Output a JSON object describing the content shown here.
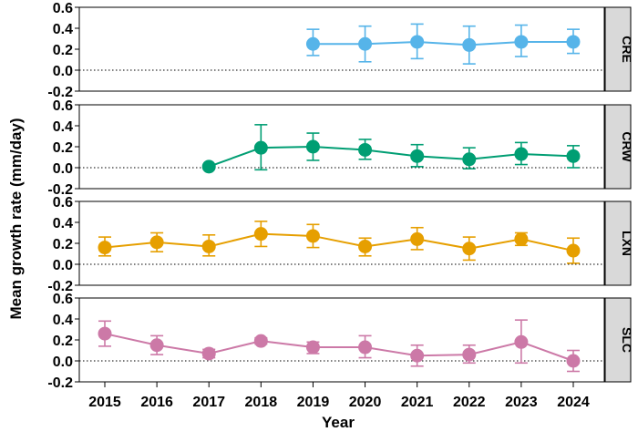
{
  "chart_data": {
    "type": "line",
    "xlabel": "Year",
    "ylabel": "Mean growth rate (mm/day)",
    "x": [
      2015,
      2016,
      2017,
      2018,
      2019,
      2020,
      2021,
      2022,
      2023,
      2024
    ],
    "ylim": [
      -0.2,
      0.6
    ],
    "yticks": [
      -0.2,
      0.0,
      0.2,
      0.4,
      0.6
    ],
    "reference_line": 0.0,
    "grid": false,
    "panels": [
      {
        "strip_label": "CRE",
        "color": "#56B4E9",
        "points": [
          {
            "x": 2019,
            "y": 0.25,
            "ymin": 0.14,
            "ymax": 0.39
          },
          {
            "x": 2020,
            "y": 0.25,
            "ymin": 0.08,
            "ymax": 0.42
          },
          {
            "x": 2021,
            "y": 0.27,
            "ymin": 0.11,
            "ymax": 0.44
          },
          {
            "x": 2022,
            "y": 0.24,
            "ymin": 0.06,
            "ymax": 0.42
          },
          {
            "x": 2023,
            "y": 0.27,
            "ymin": 0.13,
            "ymax": 0.43
          },
          {
            "x": 2024,
            "y": 0.27,
            "ymin": 0.16,
            "ymax": 0.39
          }
        ]
      },
      {
        "strip_label": "CRW",
        "color": "#009E73",
        "points": [
          {
            "x": 2017,
            "y": 0.01,
            "ymin": 0.01,
            "ymax": 0.01
          },
          {
            "x": 2018,
            "y": 0.19,
            "ymin": -0.02,
            "ymax": 0.41
          },
          {
            "x": 2019,
            "y": 0.2,
            "ymin": 0.07,
            "ymax": 0.33
          },
          {
            "x": 2020,
            "y": 0.17,
            "ymin": 0.08,
            "ymax": 0.27
          },
          {
            "x": 2021,
            "y": 0.11,
            "ymin": 0.01,
            "ymax": 0.22
          },
          {
            "x": 2022,
            "y": 0.08,
            "ymin": -0.01,
            "ymax": 0.19
          },
          {
            "x": 2023,
            "y": 0.13,
            "ymin": 0.03,
            "ymax": 0.24
          },
          {
            "x": 2024,
            "y": 0.11,
            "ymin": 0.0,
            "ymax": 0.21
          }
        ]
      },
      {
        "strip_label": "LXN",
        "color": "#E69F00",
        "points": [
          {
            "x": 2015,
            "y": 0.16,
            "ymin": 0.08,
            "ymax": 0.26
          },
          {
            "x": 2016,
            "y": 0.21,
            "ymin": 0.12,
            "ymax": 0.3
          },
          {
            "x": 2017,
            "y": 0.17,
            "ymin": 0.08,
            "ymax": 0.28
          },
          {
            "x": 2018,
            "y": 0.29,
            "ymin": 0.17,
            "ymax": 0.41
          },
          {
            "x": 2019,
            "y": 0.27,
            "ymin": 0.16,
            "ymax": 0.38
          },
          {
            "x": 2020,
            "y": 0.17,
            "ymin": 0.08,
            "ymax": 0.25
          },
          {
            "x": 2021,
            "y": 0.24,
            "ymin": 0.14,
            "ymax": 0.35
          },
          {
            "x": 2022,
            "y": 0.15,
            "ymin": 0.04,
            "ymax": 0.26
          },
          {
            "x": 2023,
            "y": 0.24,
            "ymin": 0.18,
            "ymax": 0.3
          },
          {
            "x": 2024,
            "y": 0.13,
            "ymin": 0.01,
            "ymax": 0.25
          }
        ]
      },
      {
        "strip_label": "SLC",
        "color": "#CC79A7",
        "points": [
          {
            "x": 2015,
            "y": 0.26,
            "ymin": 0.14,
            "ymax": 0.38
          },
          {
            "x": 2016,
            "y": 0.15,
            "ymin": 0.06,
            "ymax": 0.24
          },
          {
            "x": 2017,
            "y": 0.07,
            "ymin": 0.03,
            "ymax": 0.11
          },
          {
            "x": 2018,
            "y": 0.19,
            "ymin": 0.16,
            "ymax": 0.22
          },
          {
            "x": 2019,
            "y": 0.13,
            "ymin": 0.07,
            "ymax": 0.18
          },
          {
            "x": 2020,
            "y": 0.13,
            "ymin": 0.03,
            "ymax": 0.24
          },
          {
            "x": 2021,
            "y": 0.05,
            "ymin": -0.05,
            "ymax": 0.15
          },
          {
            "x": 2022,
            "y": 0.06,
            "ymin": -0.02,
            "ymax": 0.15
          },
          {
            "x": 2023,
            "y": 0.18,
            "ymin": -0.02,
            "ymax": 0.39
          },
          {
            "x": 2024,
            "y": 0.0,
            "ymin": -0.1,
            "ymax": 0.1
          }
        ]
      }
    ]
  }
}
